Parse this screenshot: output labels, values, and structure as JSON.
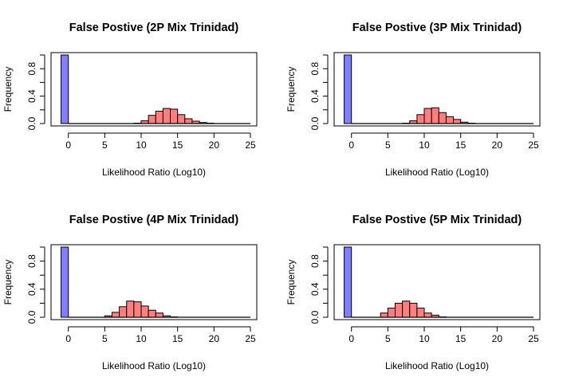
{
  "chart_data": [
    {
      "type": "bar",
      "title": "False Postive (2P Mix Trinidad)",
      "xlabel": "Likelihood Ratio (Log10)",
      "ylabel": "Frequency",
      "xlim": [
        -1.5,
        25
      ],
      "ylim": [
        0,
        1.0
      ],
      "xticks": [
        "0",
        "5",
        "10",
        "15",
        "20",
        "25"
      ],
      "yticks": [
        "0.0",
        "0.4",
        "0.8"
      ],
      "grid": false,
      "series": [
        {
          "color": "#7f7fff",
          "bins": [
            {
              "x0": -1,
              "x1": 0,
              "value": 1.0
            }
          ]
        },
        {
          "color": "#ff7f7f",
          "bins": [
            {
              "x0": 9,
              "x1": 10,
              "value": 0.005
            },
            {
              "x0": 10,
              "x1": 11,
              "value": 0.04
            },
            {
              "x0": 11,
              "x1": 12,
              "value": 0.12
            },
            {
              "x0": 12,
              "x1": 13,
              "value": 0.18
            },
            {
              "x0": 13,
              "x1": 14,
              "value": 0.22
            },
            {
              "x0": 14,
              "x1": 15,
              "value": 0.21
            },
            {
              "x0": 15,
              "x1": 16,
              "value": 0.13
            },
            {
              "x0": 16,
              "x1": 17,
              "value": 0.07
            },
            {
              "x0": 17,
              "x1": 18,
              "value": 0.035
            },
            {
              "x0": 18,
              "x1": 19,
              "value": 0.015
            },
            {
              "x0": 19,
              "x1": 20,
              "value": 0.005
            }
          ]
        }
      ]
    },
    {
      "type": "bar",
      "title": "False Postive (3P Mix Trinidad)",
      "xlabel": "Likelihood Ratio (Log10)",
      "ylabel": "Frequency",
      "xlim": [
        -1.5,
        25
      ],
      "ylim": [
        0,
        1.0
      ],
      "xticks": [
        "0",
        "5",
        "10",
        "15",
        "20",
        "25"
      ],
      "yticks": [
        "0.0",
        "0.4",
        "0.8"
      ],
      "grid": false,
      "series": [
        {
          "color": "#7f7fff",
          "bins": [
            {
              "x0": -1,
              "x1": 0,
              "value": 1.0
            }
          ]
        },
        {
          "color": "#ff7f7f",
          "bins": [
            {
              "x0": 7,
              "x1": 8,
              "value": 0.005
            },
            {
              "x0": 8,
              "x1": 9,
              "value": 0.04
            },
            {
              "x0": 9,
              "x1": 10,
              "value": 0.13
            },
            {
              "x0": 10,
              "x1": 11,
              "value": 0.22
            },
            {
              "x0": 11,
              "x1": 12,
              "value": 0.23
            },
            {
              "x0": 12,
              "x1": 13,
              "value": 0.16
            },
            {
              "x0": 13,
              "x1": 14,
              "value": 0.1
            },
            {
              "x0": 14,
              "x1": 15,
              "value": 0.06
            },
            {
              "x0": 15,
              "x1": 16,
              "value": 0.02
            },
            {
              "x0": 16,
              "x1": 17,
              "value": 0.005
            }
          ]
        }
      ]
    },
    {
      "type": "bar",
      "title": "False Postive (4P Mix Trinidad)",
      "xlabel": "Likelihood Ratio (Log10)",
      "ylabel": "Frequency",
      "xlim": [
        -1.5,
        25
      ],
      "ylim": [
        0,
        1.0
      ],
      "xticks": [
        "0",
        "5",
        "10",
        "15",
        "20",
        "25"
      ],
      "yticks": [
        "0.0",
        "0.4",
        "0.8"
      ],
      "grid": false,
      "series": [
        {
          "color": "#7f7fff",
          "bins": [
            {
              "x0": -1,
              "x1": 0,
              "value": 1.0
            }
          ]
        },
        {
          "color": "#ff7f7f",
          "bins": [
            {
              "x0": 5,
              "x1": 6,
              "value": 0.02
            },
            {
              "x0": 6,
              "x1": 7,
              "value": 0.07
            },
            {
              "x0": 7,
              "x1": 8,
              "value": 0.15
            },
            {
              "x0": 8,
              "x1": 9,
              "value": 0.23
            },
            {
              "x0": 9,
              "x1": 10,
              "value": 0.22
            },
            {
              "x0": 10,
              "x1": 11,
              "value": 0.16
            },
            {
              "x0": 11,
              "x1": 12,
              "value": 0.1
            },
            {
              "x0": 12,
              "x1": 13,
              "value": 0.06
            },
            {
              "x0": 13,
              "x1": 14,
              "value": 0.02
            },
            {
              "x0": 14,
              "x1": 15,
              "value": 0.005
            }
          ]
        }
      ]
    },
    {
      "type": "bar",
      "title": "False Postive (5P Mix Trinidad)",
      "xlabel": "Likelihood Ratio (Log10)",
      "ylabel": "Frequency",
      "xlim": [
        -1.5,
        25
      ],
      "ylim": [
        0,
        1.0
      ],
      "xticks": [
        "0",
        "5",
        "10",
        "15",
        "20",
        "25"
      ],
      "yticks": [
        "0.0",
        "0.4",
        "0.8"
      ],
      "grid": false,
      "series": [
        {
          "color": "#7f7fff",
          "bins": [
            {
              "x0": -1,
              "x1": 0,
              "value": 1.0
            }
          ]
        },
        {
          "color": "#ff7f7f",
          "bins": [
            {
              "x0": 4,
              "x1": 5,
              "value": 0.06
            },
            {
              "x0": 5,
              "x1": 6,
              "value": 0.13
            },
            {
              "x0": 6,
              "x1": 7,
              "value": 0.2
            },
            {
              "x0": 7,
              "x1": 8,
              "value": 0.23
            },
            {
              "x0": 8,
              "x1": 9,
              "value": 0.2
            },
            {
              "x0": 9,
              "x1": 10,
              "value": 0.13
            },
            {
              "x0": 10,
              "x1": 11,
              "value": 0.06
            },
            {
              "x0": 11,
              "x1": 12,
              "value": 0.03
            },
            {
              "x0": 12,
              "x1": 13,
              "value": 0.005
            }
          ]
        }
      ]
    }
  ]
}
